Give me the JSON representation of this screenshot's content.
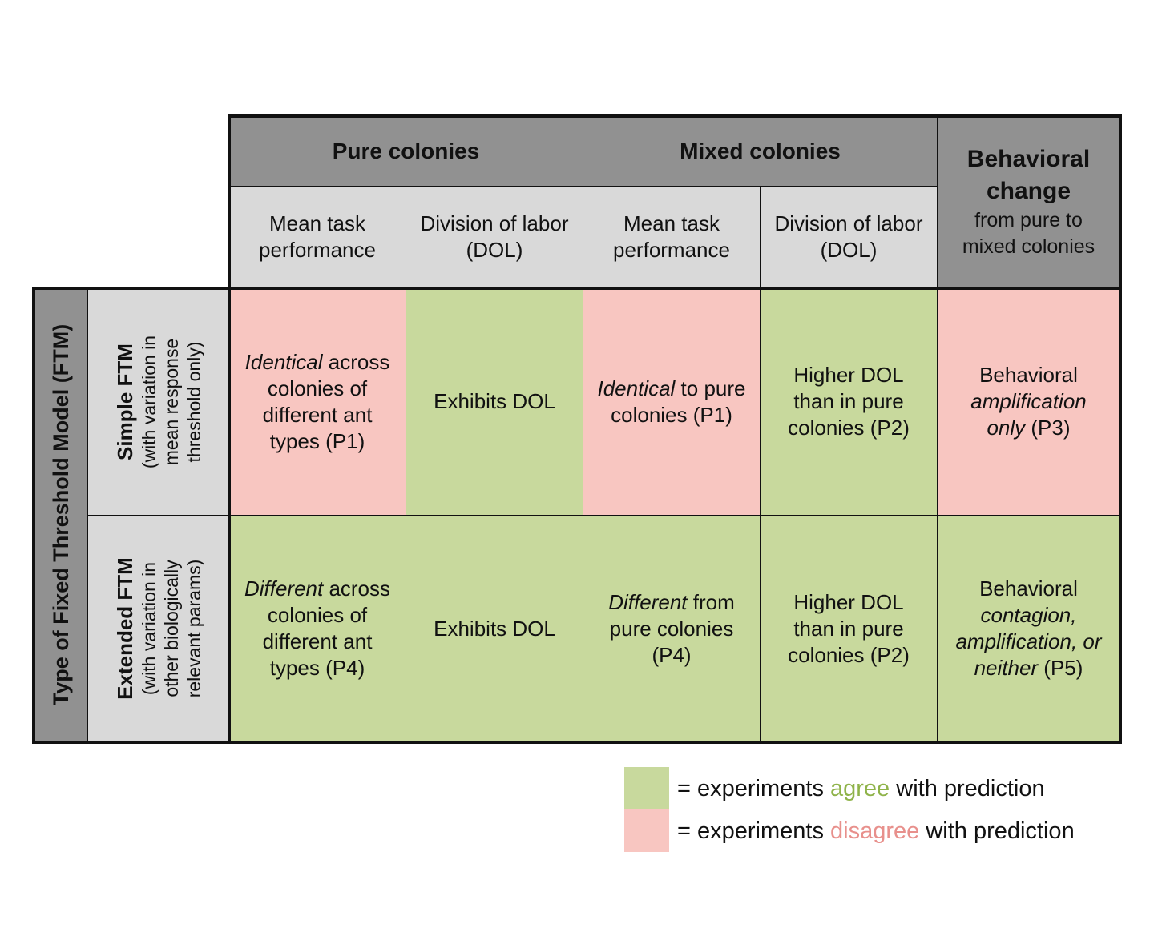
{
  "groups": {
    "pure": "Pure colonies",
    "mixed": "Mixed colonies",
    "behavioral_title": "Behavioral change",
    "behavioral_sub": "from pure to mixed colonies"
  },
  "subheaders": {
    "pure_mean": "Mean task performance",
    "pure_dol": "Division of labor (DOL)",
    "mixed_mean": "Mean task performance",
    "mixed_dol": "Division of labor (DOL)"
  },
  "row_axis": "Type of Fixed Threshold Model (FTM)",
  "rows": {
    "simple": {
      "title": "Simple FTM",
      "sub_line1": "(with variation in",
      "sub_line2": "mean response",
      "sub_line3": "threshold only)"
    },
    "extended": {
      "title": "Extended FTM",
      "sub_line1": "(with variation in",
      "sub_line2": "other biologically",
      "sub_line3": "relevant params)"
    }
  },
  "cells": {
    "s_pure_mean": {
      "em": "Identical",
      "rest": " across colonies of different ant types (P1)"
    },
    "s_pure_dol": "Exhibits DOL",
    "s_mixed_mean": {
      "em": "Identical",
      "rest": " to pure colonies (P1)"
    },
    "s_mixed_dol": "Higher DOL than in pure colonies (P2)",
    "s_behav": {
      "pre": "Behavioral ",
      "em": "amplification only",
      "post": " (P3)"
    },
    "e_pure_mean": {
      "em": "Different",
      "rest": " across colonies of different ant types (P4)"
    },
    "e_pure_dol": "Exhibits DOL",
    "e_mixed_mean": {
      "em": "Different",
      "rest": " from pure colonies (P4)"
    },
    "e_mixed_dol": "Higher DOL than in pure colonies (P2)",
    "e_behav": {
      "pre": "Behavioral ",
      "em": "contagion, amplification, or neither",
      "post": " (P5)"
    }
  },
  "legend": {
    "agree_prefix": "= experiments ",
    "agree_word": "agree",
    "agree_suffix": " with prediction",
    "disagree_prefix": "= experiments ",
    "disagree_word": "disagree",
    "disagree_suffix": " with prediction",
    "agree_color": "#c8d99d",
    "disagree_color": "#f8c6c1"
  }
}
